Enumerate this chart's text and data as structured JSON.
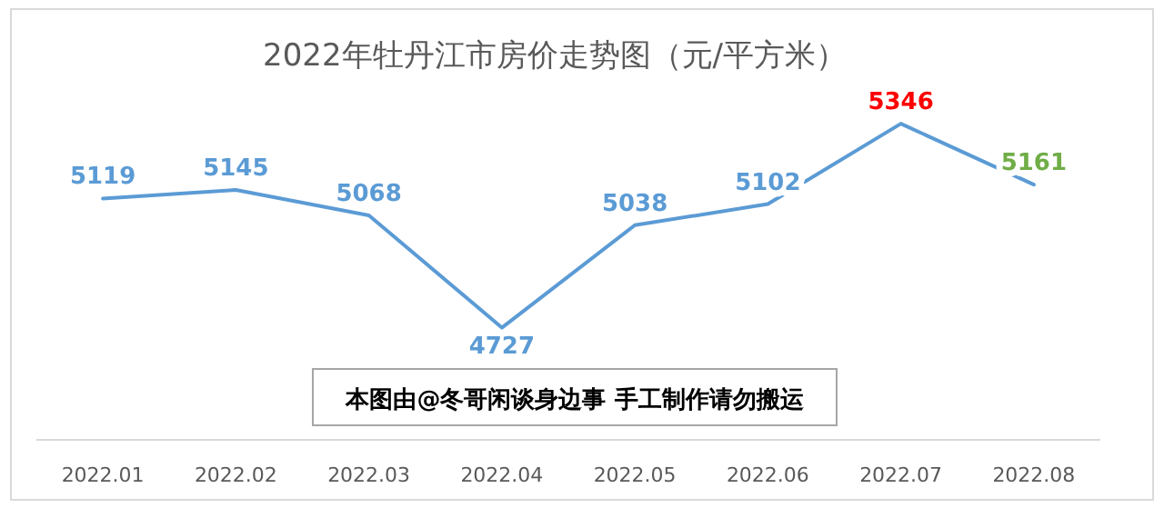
{
  "chart_data": {
    "type": "line",
    "title": "2022年牡丹江市房价走势图（元/平方米）",
    "categories": [
      "2022.01",
      "2022.02",
      "2022.03",
      "2022.04",
      "2022.05",
      "2022.06",
      "2022.07",
      "2022.08"
    ],
    "series": [
      {
        "color": "#5b9bd5",
        "values": [
          5119,
          5145,
          5068,
          4727,
          5038,
          5102,
          5346,
          5161
        ],
        "colors": [
          "#5b9bd5",
          "#5b9bd5",
          "#5b9bd5",
          "#5b9bd5",
          "#5b9bd5",
          "#5b9bd5",
          "#ff0000",
          "#70ad47"
        ]
      }
    ],
    "data_labels": true,
    "line_style": "solid",
    "annotations": [
      "本图由@冬哥闲谈身边事 手工制作请勿搬运"
    ]
  }
}
